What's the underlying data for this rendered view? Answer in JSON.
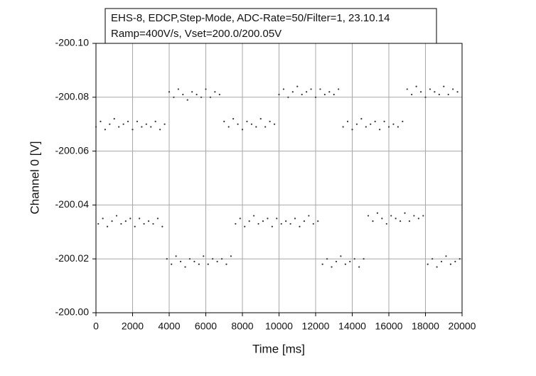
{
  "chart_data": {
    "type": "scatter",
    "title": "EHS-8, EDCP,Step-Mode, ADC-Rate=50/Filter=1, 23.10.14",
    "subtitle": "Ramp=400V/s, Vset=200.0/200.05V",
    "x_label": "Time [ms]",
    "y_label": "Channel 0 [V]",
    "color": "#333333",
    "grid": true,
    "y_inverted": true,
    "xlim": [
      0,
      20000
    ],
    "xticks": [
      0,
      2000,
      4000,
      6000,
      8000,
      10000,
      12000,
      14000,
      16000,
      18000,
      20000
    ],
    "ylim": [
      -200.1,
      -200.0
    ],
    "yticks": [
      {
        "value": -200.1,
        "label": "-200.10"
      },
      -200.08,
      -200.06,
      -200.04,
      -200.02,
      {
        "value": -200.0,
        "label": "-200.00"
      }
    ],
    "x": [
      0,
      250,
      500,
      750,
      1000,
      1250,
      1500,
      1750,
      2000,
      2250,
      2500,
      2750,
      3000,
      3250,
      3500,
      3750,
      4000,
      4250,
      4500,
      4750,
      5000,
      5250,
      5500,
      5750,
      6000,
      6250,
      6500,
      6750,
      7000,
      7250,
      7500,
      7750,
      8000,
      8250,
      8500,
      8750,
      9000,
      9250,
      9500,
      9750,
      10000,
      10250,
      10500,
      10750,
      11000,
      11250,
      11500,
      11750,
      12000,
      12250,
      12500,
      12750,
      13000,
      13250,
      13500,
      13750,
      14000,
      14250,
      14500,
      14750,
      15000,
      15250,
      15500,
      15750,
      16000,
      16250,
      16500,
      16750,
      17000,
      17250,
      17500,
      17750,
      18000,
      18250,
      18500,
      18750,
      19000,
      19250,
      19500,
      19750,
      125,
      375,
      625,
      875,
      1125,
      1375,
      1625,
      1875,
      2125,
      2375,
      2625,
      2875,
      3125,
      3375,
      3625,
      3875,
      4125,
      4375,
      4625,
      4875,
      5125,
      5375,
      5625,
      5875,
      6125,
      6375,
      6625,
      6875,
      7125,
      7375,
      7625,
      7875,
      8125,
      8375,
      8625,
      8875,
      9125,
      9375,
      9625,
      9875,
      10125,
      10375,
      10625,
      10875,
      11125,
      11375,
      11625,
      11875,
      12125,
      12375,
      12625,
      12875,
      13125,
      13375,
      13625,
      13875,
      14125,
      14375,
      14625,
      14875,
      15125,
      15375,
      15625,
      15875,
      16125,
      16375,
      16625,
      16875,
      17125,
      17375,
      17625,
      17875,
      18125,
      18375,
      18625,
      18875,
      19125,
      19375,
      19625,
      19875
    ],
    "values": [
      -200.069,
      -200.071,
      -200.068,
      -200.07,
      -200.072,
      -200.069,
      -200.07,
      -200.071,
      -200.068,
      -200.071,
      -200.069,
      -200.07,
      -200.069,
      -200.071,
      -200.068,
      -200.07,
      -200.082,
      -200.08,
      -200.083,
      -200.081,
      -200.079,
      -200.082,
      -200.081,
      -200.08,
      -200.083,
      -200.08,
      -200.082,
      -200.081,
      -200.071,
      -200.069,
      -200.072,
      -200.07,
      -200.068,
      -200.071,
      -200.07,
      -200.069,
      -200.072,
      -200.069,
      -200.071,
      -200.07,
      -200.081,
      -200.083,
      -200.08,
      -200.082,
      -200.084,
      -200.081,
      -200.082,
      -200.083,
      -200.08,
      -200.083,
      -200.081,
      -200.082,
      -200.081,
      -200.083,
      -200.069,
      -200.071,
      -200.068,
      -200.07,
      -200.072,
      -200.069,
      -200.07,
      -200.071,
      -200.068,
      -200.071,
      -200.069,
      -200.07,
      -200.069,
      -200.071,
      -200.083,
      -200.081,
      -200.084,
      -200.082,
      -200.08,
      -200.083,
      -200.082,
      -200.081,
      -200.084,
      -200.081,
      -200.083,
      -200.082,
      -200.033,
      -200.035,
      -200.032,
      -200.034,
      -200.036,
      -200.033,
      -200.034,
      -200.035,
      -200.032,
      -200.035,
      -200.033,
      -200.034,
      -200.033,
      -200.035,
      -200.032,
      -200.02,
      -200.018,
      -200.021,
      -200.019,
      -200.017,
      -200.02,
      -200.019,
      -200.018,
      -200.021,
      -200.018,
      -200.02,
      -200.019,
      -200.02,
      -200.018,
      -200.021,
      -200.033,
      -200.035,
      -200.032,
      -200.034,
      -200.036,
      -200.033,
      -200.034,
      -200.035,
      -200.032,
      -200.035,
      -200.033,
      -200.034,
      -200.033,
      -200.035,
      -200.032,
      -200.034,
      -200.036,
      -200.033,
      -200.034,
      -200.018,
      -200.02,
      -200.017,
      -200.019,
      -200.021,
      -200.018,
      -200.019,
      -200.02,
      -200.017,
      -200.02,
      -200.036,
      -200.034,
      -200.037,
      -200.035,
      -200.033,
      -200.036,
      -200.035,
      -200.034,
      -200.037,
      -200.034,
      -200.036,
      -200.035,
      -200.036,
      -200.018,
      -200.02,
      -200.017,
      -200.019,
      -200.021,
      -200.018,
      -200.019,
      -200.02
    ]
  }
}
